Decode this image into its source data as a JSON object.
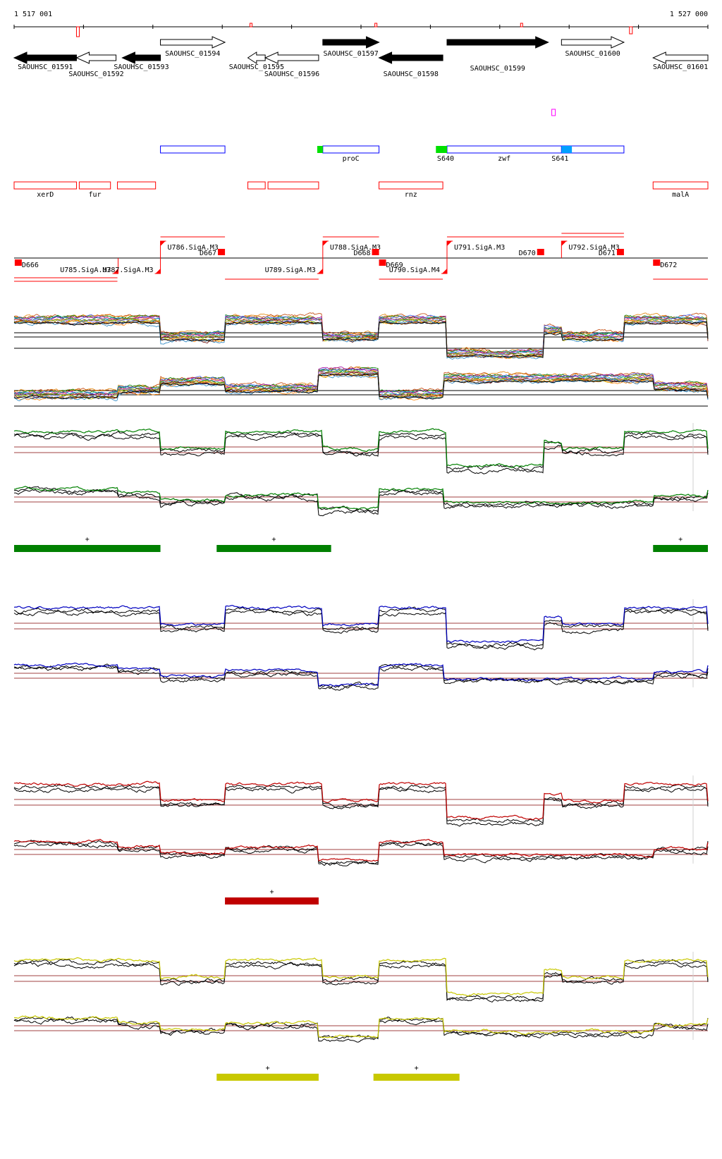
{
  "coords": {
    "start": "1 517 001",
    "end": "1 527 000"
  },
  "genes": [
    {
      "id": "SAOUHSC_01591",
      "strand": "-",
      "filled": true,
      "start": 1517001,
      "end": 1517900
    },
    {
      "id": "SAOUHSC_01592",
      "strand": "-",
      "filled": false,
      "start": 1517900,
      "end": 1518470
    },
    {
      "id": "SAOUHSC_01593",
      "strand": "-",
      "filled": true,
      "start": 1518560,
      "end": 1519110
    },
    {
      "id": "SAOUHSC_01594",
      "strand": "+",
      "filled": false,
      "start": 1519110,
      "end": 1520040
    },
    {
      "id": "SAOUHSC_01595",
      "strand": "-",
      "filled": false,
      "start": 1520370,
      "end": 1520620
    },
    {
      "id": "SAOUHSC_01596",
      "strand": "-",
      "filled": false,
      "start": 1520620,
      "end": 1521390
    },
    {
      "id": "SAOUHSC_01597",
      "strand": "+",
      "filled": true,
      "start": 1521450,
      "end": 1522260
    },
    {
      "id": "SAOUHSC_01598",
      "strand": "-",
      "filled": true,
      "start": 1522260,
      "end": 1523180
    },
    {
      "id": "SAOUHSC_01599",
      "strand": "+",
      "filled": true,
      "start": 1523240,
      "end": 1524700
    },
    {
      "id": "SAOUHSC_01600",
      "strand": "+",
      "filled": false,
      "start": 1524890,
      "end": 1525790
    },
    {
      "id": "SAOUHSC_01601",
      "strand": "-",
      "filled": false,
      "start": 1526210,
      "end": 1527000
    }
  ],
  "blue_features": [
    {
      "name": "",
      "start": 1519110,
      "end": 1520040
    },
    {
      "name": "proC",
      "start": 1521450,
      "end": 1522260
    },
    {
      "name": "zwf",
      "start": 1523240,
      "end": 1524890
    },
    {
      "name": "",
      "start": 1524890,
      "end": 1525790
    }
  ],
  "small_labels": [
    {
      "name": "S640",
      "pos": 1523240
    },
    {
      "name": "S641",
      "pos": 1524890
    }
  ],
  "red_features": [
    {
      "name": "xerD",
      "start": 1517001,
      "end": 1517900
    },
    {
      "name": "fur",
      "start": 1517940,
      "end": 1518390
    },
    {
      "name": "",
      "start": 1518490,
      "end": 1519040
    },
    {
      "name": "",
      "start": 1520370,
      "end": 1520620
    },
    {
      "name": "",
      "start": 1520660,
      "end": 1521390
    },
    {
      "name": "rnz",
      "start": 1522260,
      "end": 1523180
    },
    {
      "name": "malA",
      "start": 1526210,
      "end": 1527000
    }
  ],
  "segments": {
    "upper": [
      {
        "label": "U786.SigA.M3",
        "pos": 1519110
      },
      {
        "label": "D667",
        "pos": 1520040
      },
      {
        "label": "U788.SigA.M3",
        "pos": 1521450
      },
      {
        "label": "D668",
        "pos": 1522260
      },
      {
        "label": "U791.SigA.M3",
        "pos": 1523240
      },
      {
        "label": "D670",
        "pos": 1524640
      },
      {
        "label": "U792.SigA.M3",
        "pos": 1524890
      },
      {
        "label": "D671",
        "pos": 1525790
      }
    ],
    "lower": [
      {
        "label": "D666",
        "pos": 1517010
      },
      {
        "label": "U785.SigA.M3",
        "pos": 1518500
      },
      {
        "label": "U787.SigA.M3",
        "pos": 1519110
      },
      {
        "label": "U789.SigA.M3",
        "pos": 1521450
      },
      {
        "label": "D669",
        "pos": 1522260
      },
      {
        "label": "U790.SigA.M4",
        "pos": 1523240
      },
      {
        "label": "D672",
        "pos": 1526210
      }
    ]
  },
  "panels": [
    {
      "color": "#008000",
      "bars": [
        {
          "label": "+",
          "start": 1517001,
          "end": 1519110
        },
        {
          "label": "+",
          "start": 1519920,
          "end": 1521570
        },
        {
          "label": "+",
          "start": 1526210,
          "end": 1527000
        }
      ]
    },
    {
      "color": "#0000c0",
      "bars": []
    },
    {
      "color": "#c00000",
      "bars": [
        {
          "label": "+",
          "start": 1520040,
          "end": 1521390
        }
      ]
    },
    {
      "color": "#c8c800",
      "bars": [
        {
          "label": "+",
          "start": 1519920,
          "end": 1521390
        },
        {
          "label": "+",
          "start": 1522180,
          "end": 1523420
        }
      ]
    }
  ],
  "colors": {
    "red": "#ff0000",
    "blue": "#0000ff",
    "green": "#00e000",
    "light_blue": "#00a0ff",
    "magenta": "#ff00ff"
  }
}
